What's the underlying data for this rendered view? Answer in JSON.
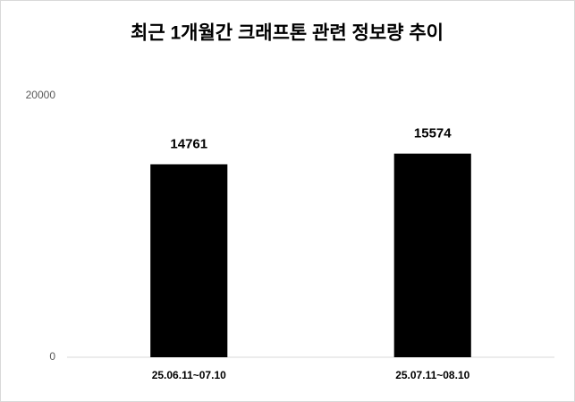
{
  "chart_data": {
    "type": "bar",
    "title": "최근 1개월간 크래프톤 관련 정보량 추이",
    "categories": [
      "25.06.11~07.10",
      "25.07.11~08.10"
    ],
    "values": [
      14761,
      15574
    ],
    "color": "#000000",
    "ylim": [
      0,
      20000
    ],
    "yticks": [
      0,
      20000
    ],
    "grid": false,
    "data_labels": true
  }
}
